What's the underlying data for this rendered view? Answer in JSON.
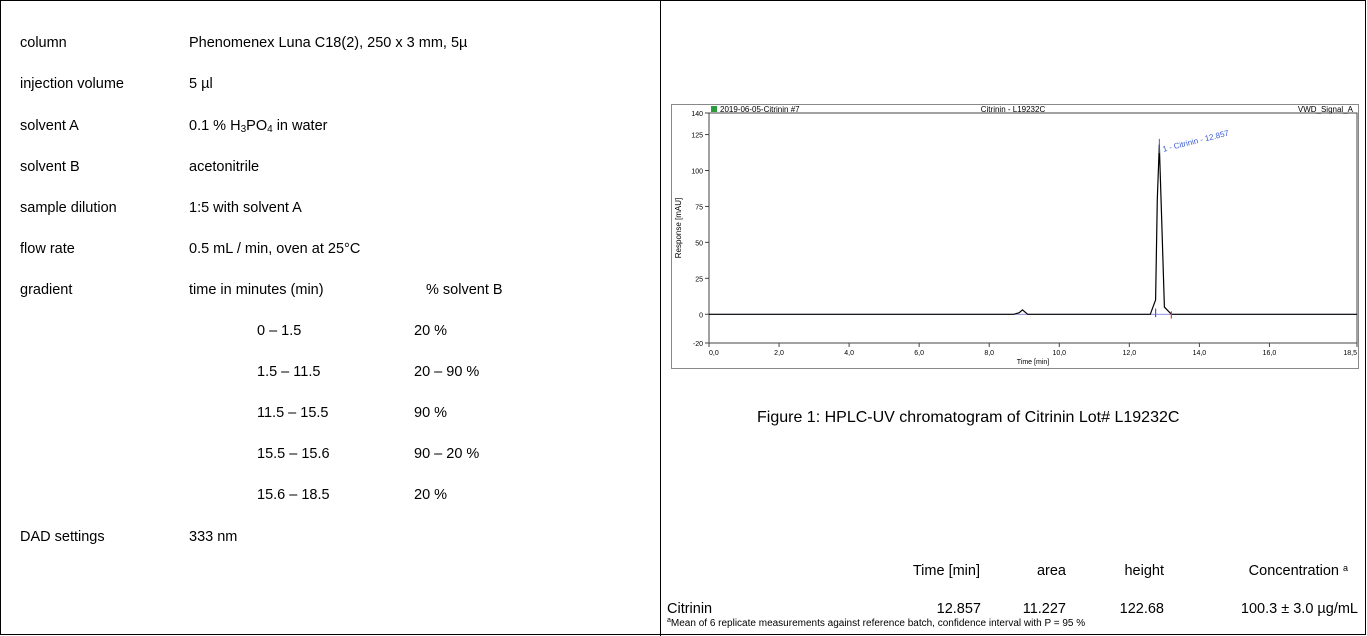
{
  "params": [
    {
      "label": "column",
      "value": "Phenomenex Luna C18(2), 250 x 3 mm, 5µ"
    },
    {
      "label": "injection volume",
      "value": "5 µl"
    },
    {
      "label": "solvent A",
      "value_pre": "0.1 % H",
      "sub1": "3",
      "mid": "PO",
      "sub2": "4",
      "value_post": " in water"
    },
    {
      "label": "solvent B",
      "value": "acetonitrile"
    },
    {
      "label": "sample dilution",
      "value": "1:5  with solvent A"
    },
    {
      "label": "flow rate",
      "value": "0.5 mL / min, oven at 25°C"
    },
    {
      "label": "gradient",
      "value": "time in minutes (min)",
      "col3": "% solvent B"
    },
    {
      "label": "DAD settings",
      "value": "333 nm"
    }
  ],
  "gradient_steps": [
    {
      "time": "0 – 1.5",
      "b": "20 %"
    },
    {
      "time": "1.5  – 11.5",
      "b": "20 – 90 %"
    },
    {
      "time": "11.5  – 15.5",
      "b": "90 %"
    },
    {
      "time": "15.5 – 15.6",
      "b": "90 – 20 %"
    },
    {
      "time": "15.6  – 18.5",
      "b": "20 %"
    }
  ],
  "chart_data": {
    "type": "line",
    "header_left": "2019-06-05-Citrinin #7",
    "header_center": "Citrinin - L19232C",
    "header_right": "VWD_Signal_A",
    "xlabel": "Time [min]",
    "ylabel": "Response [mAU]",
    "xlim": [
      0,
      18.5
    ],
    "ylim": [
      -20,
      140
    ],
    "xticks": [
      "0,0",
      "2,0",
      "4,0",
      "6,0",
      "8,0",
      "10,0",
      "12,0",
      "14,0",
      "16,0",
      "18,5"
    ],
    "xtick_values": [
      0,
      2,
      4,
      6,
      8,
      10,
      12,
      14,
      16,
      18.5
    ],
    "yticks": [
      "-20",
      "0",
      "25",
      "50",
      "75",
      "100",
      "125",
      "140"
    ],
    "ytick_values": [
      -20,
      0,
      25,
      50,
      75,
      100,
      125,
      140
    ],
    "peak_label": "1 - Citrinin - 12.857",
    "series": [
      {
        "x": [
          0,
          8.7,
          8.85,
          8.95,
          9.1,
          12.6,
          12.75,
          12.8,
          12.857,
          12.92,
          13.0,
          13.2,
          18.5
        ],
        "y": [
          0,
          0,
          1,
          3,
          0,
          0,
          10,
          80,
          118,
          70,
          5,
          0,
          0
        ]
      }
    ]
  },
  "caption": "Figure 1: HPLC-UV chromatogram of Citrinin Lot# L19232C",
  "results": {
    "headers": [
      "Time [min]",
      "area",
      "height",
      "Concentration"
    ],
    "header_sup": "a",
    "row_label": "Citrinin",
    "values": [
      "12.857",
      "11.227",
      "122.68",
      "100.3 ± 3.0 µg/mL"
    ],
    "footnote_sup": "a",
    "footnote": "Mean of 6 replicate measurements against reference batch, confidence interval with P = 95 %"
  }
}
